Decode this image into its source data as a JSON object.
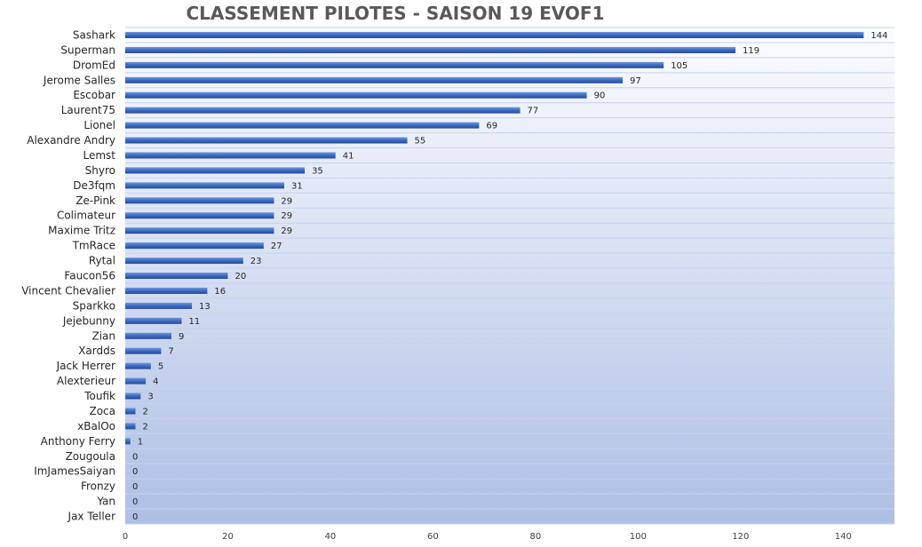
{
  "chart_data": {
    "type": "bar",
    "orientation": "horizontal",
    "title": "CLASSEMENT PILOTES - SAISON 19   EVOF1",
    "categories": [
      "Sashark",
      "Superman",
      "DromEd",
      "Jerome Salles",
      "Escobar",
      "Laurent75",
      "Lionel",
      "Alexandre Andry",
      "Lemst",
      "Shyro",
      "De3fqm",
      "Ze-Pink",
      "Colimateur",
      "Maxime Tritz",
      "TmRace",
      "Rytal",
      "Faucon56",
      "Vincent Chevalier",
      "Sparkko",
      "Jejebunny",
      "Zian",
      "Xardds",
      "Jack Herrer",
      "Alexterieur",
      "Toufik",
      "Zoca",
      "xBalOo",
      "Anthony Ferry",
      "Zougoula",
      "ImJamesSaiyan",
      "Fronzy",
      "Yan",
      "Jax Teller"
    ],
    "values": [
      144,
      119,
      105,
      97,
      90,
      77,
      69,
      55,
      41,
      35,
      31,
      29,
      29,
      29,
      27,
      23,
      20,
      16,
      13,
      11,
      9,
      7,
      5,
      4,
      3,
      2,
      2,
      1,
      0,
      0,
      0,
      0,
      0
    ],
    "xlim": [
      0,
      150
    ],
    "xticks": [
      0,
      20,
      40,
      60,
      80,
      100,
      120,
      140
    ],
    "data_labels": true,
    "grid": "horizontal",
    "legend": "none",
    "colors": {
      "bar_top": "#6f97dc",
      "bar_mid": "#3f6fc4",
      "bar_bottom": "#24479a",
      "bg_top": "#fbfcff",
      "bg_bottom": "#aebfe5",
      "grid": "#c6d2ee",
      "title": "#595959"
    }
  }
}
